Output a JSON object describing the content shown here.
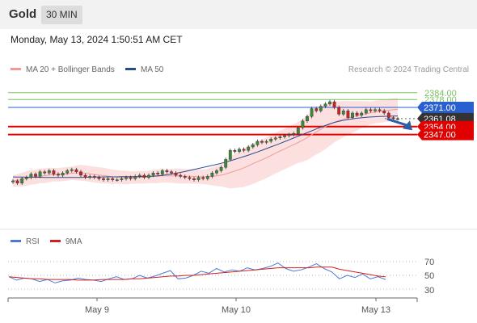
{
  "header": {
    "title": "Gold",
    "timeframe": "30 MIN"
  },
  "datetime": "Monday, May 13, 2024 1:50:51 AM CET",
  "credit": "Research © 2024 Trading Central",
  "colors": {
    "up": "#3a8a3a",
    "down": "#d22020",
    "ma20": "#f29a9a",
    "ma50": "#2a4a90",
    "resistance_green": "#7cc063",
    "resistance_blue": "#2a5fcf",
    "support_red": "#e00000",
    "current": "#333333",
    "rsi": "#4a7ad8",
    "rsi_ma": "#d22020"
  },
  "chart_data": [
    {
      "type": "candlestick",
      "title": "",
      "legend": [
        "MA 20 + Bollinger Bands",
        "MA 50"
      ],
      "legend_position": "top-left",
      "x_tick_labels": [
        "May 9",
        "May 10",
        "May 13"
      ],
      "ylim": [
        2300,
        2390
      ],
      "grid": false,
      "price_levels": [
        {
          "value": 2384.0,
          "label": "2384.00",
          "kind": "resistance",
          "color": "#7cc063",
          "tag": "text"
        },
        {
          "value": 2378.0,
          "label": "2378.00",
          "kind": "resistance",
          "color": "#7cc063",
          "tag": "text"
        },
        {
          "value": 2371.0,
          "label": "2371.00",
          "kind": "pivot",
          "color": "#2a5fcf",
          "tag": "box"
        },
        {
          "value": 2361.08,
          "label": "2361.08",
          "kind": "current",
          "color": "#333333",
          "tag": "box"
        },
        {
          "value": 2354.0,
          "label": "2354.00",
          "kind": "support",
          "color": "#e00000",
          "tag": "box"
        },
        {
          "value": 2347.0,
          "label": "2347.00",
          "kind": "support",
          "color": "#e00000",
          "tag": "box"
        }
      ],
      "close": [
        2306,
        2304,
        2308,
        2309,
        2312,
        2310,
        2314,
        2313,
        2315,
        2312,
        2311,
        2313,
        2315,
        2316,
        2314,
        2311,
        2309,
        2310,
        2309,
        2308,
        2307,
        2308,
        2307,
        2307,
        2308,
        2309,
        2308,
        2310,
        2311,
        2309,
        2311,
        2313,
        2312,
        2315,
        2314,
        2313,
        2311,
        2310,
        2309,
        2308,
        2307,
        2309,
        2308,
        2310,
        2313,
        2315,
        2318,
        2325,
        2333,
        2332,
        2334,
        2333,
        2336,
        2338,
        2341,
        2340,
        2341,
        2343,
        2344,
        2345,
        2346,
        2347,
        2348,
        2353,
        2359,
        2363,
        2370,
        2368,
        2372,
        2374,
        2376,
        2371,
        2365,
        2368,
        2362,
        2366,
        2364,
        2366,
        2369,
        2368,
        2369,
        2368,
        2366,
        2362,
        2361,
        2361
      ],
      "ma20": [
        2306,
        2306.4,
        2307.3,
        2308,
        2309.2,
        2309.4,
        2310.5,
        2310.6,
        2311.2,
        2311.4,
        2311.5,
        2311.8,
        2312.2,
        2312.8,
        2313.1,
        2313.2,
        2312.8,
        2312.2,
        2311.6,
        2311.1,
        2310.7,
        2310.2,
        2309.6,
        2309.4,
        2309.1,
        2309,
        2308.9,
        2309,
        2309.2,
        2309.2,
        2309.5,
        2309.9,
        2310.1,
        2310.5,
        2310.5,
        2310.4,
        2310.4,
        2310.2,
        2310.1,
        2310.1,
        2310,
        2309.8,
        2309.6,
        2309.7,
        2310,
        2310.4,
        2311.1,
        2312.1,
        2313.4,
        2314.7,
        2316,
        2317.6,
        2319.3,
        2321.2,
        2322.9,
        2324.7,
        2326.4,
        2328.5,
        2330.5,
        2332.4,
        2334.3,
        2336.2,
        2338.1,
        2339.9,
        2342,
        2344.3,
        2346.9,
        2349.3,
        2351.6,
        2354,
        2356.1,
        2358,
        2359.4,
        2360.8,
        2361.7,
        2362.6,
        2363.6,
        2364.6,
        2365.5,
        2366.2,
        2366.9,
        2367.4,
        2368,
        2368.5,
        2368.9,
        2369.3
      ],
      "ma50": [
        2309.5,
        2309.4,
        2309.4,
        2309.3,
        2309.3,
        2309.2,
        2309.2,
        2309.1,
        2309.1,
        2309,
        2309,
        2309,
        2309,
        2309,
        2309,
        2309.1,
        2309.2,
        2309.3,
        2309.4,
        2309.5,
        2309.5,
        2309.6,
        2309.6,
        2309.6,
        2309.7,
        2309.7,
        2309.7,
        2309.8,
        2309.8,
        2309.9,
        2310,
        2310.2,
        2310.5,
        2310.9,
        2311.4,
        2312,
        2312.7,
        2313.5,
        2314.3,
        2315.2,
        2316.1,
        2317,
        2317.9,
        2318.8,
        2319.7,
        2320.6,
        2321.6,
        2322.7,
        2323.8,
        2325,
        2326.2,
        2327.5,
        2328.8,
        2330.2,
        2331.6,
        2333.1,
        2334.6,
        2336.1,
        2337.6,
        2339.1,
        2340.7,
        2342.3,
        2343.9,
        2345.5,
        2347.1,
        2348.7,
        2350.3,
        2351.9,
        2353.5,
        2355,
        2356.4,
        2357.7,
        2358.7,
        2359.6,
        2360.3,
        2360.9,
        2361.4,
        2361.8,
        2362.2,
        2362.5,
        2362.7,
        2362.9,
        2363.1,
        2363.2,
        2363.3,
        2363.4
      ],
      "bb_width": [
        5,
        5.5,
        6,
        6.5,
        6.5,
        6.5,
        6.5,
        6.5,
        6.5,
        6,
        6,
        6,
        6,
        6,
        6.5,
        7,
        7,
        7,
        7,
        7,
        7,
        6.5,
        6.5,
        6,
        6,
        6,
        5.5,
        5.5,
        5.5,
        5.5,
        5.5,
        6,
        6,
        6,
        6,
        6,
        6.5,
        6.5,
        6.5,
        6.5,
        6.5,
        6.5,
        6.5,
        7,
        8,
        9,
        10,
        12,
        14,
        15,
        16,
        17,
        17.5,
        18,
        18,
        18,
        18,
        18,
        18,
        18,
        18,
        18,
        18,
        18,
        19,
        20,
        20,
        20,
        20,
        20,
        19,
        18,
        17,
        16,
        15,
        14,
        13,
        12,
        11,
        10,
        10,
        10,
        10,
        10,
        10,
        10
      ],
      "forecast_arrow": {
        "from": 2360.5,
        "to": 2351.5,
        "direction": "down"
      }
    },
    {
      "type": "line",
      "legend": [
        "RSI",
        "9MA"
      ],
      "y_tick_labels": [
        "70",
        "50",
        "30"
      ],
      "levels": [
        70,
        50,
        30
      ],
      "ylim": [
        20,
        80
      ],
      "rsi": [
        48,
        43,
        46,
        45,
        41,
        44,
        39,
        42,
        43,
        46,
        44,
        43,
        41,
        45,
        48,
        44,
        45,
        50,
        46,
        49,
        53,
        57,
        45,
        46,
        50,
        56,
        53,
        60,
        55,
        58,
        56,
        61,
        58,
        60,
        63,
        68,
        60,
        56,
        58,
        62,
        67,
        60,
        55,
        45,
        50,
        47,
        52,
        45,
        48,
        44
      ],
      "rsi_9ma": [
        48,
        47,
        46,
        45,
        45,
        44,
        44,
        44,
        44,
        43,
        43,
        43,
        44,
        44,
        44,
        44,
        45,
        45,
        46,
        47,
        48,
        49,
        49,
        50,
        50,
        51,
        52,
        53,
        54,
        55,
        56,
        57,
        58,
        59,
        60,
        61,
        61,
        61,
        61,
        61,
        62,
        62,
        62,
        59,
        57,
        55,
        53,
        51,
        49,
        48
      ]
    }
  ]
}
